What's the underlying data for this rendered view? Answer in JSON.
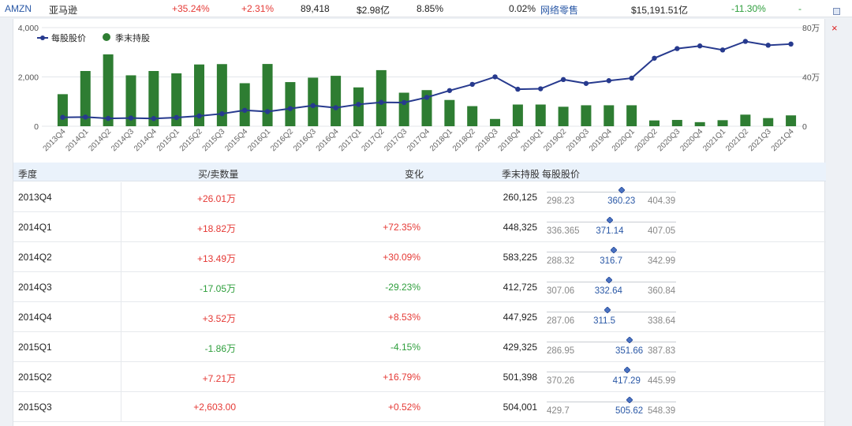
{
  "top_row": {
    "ticker": "AMZN",
    "name": "亚马逊",
    "change1": "+35.24%",
    "change2": "+2.31%",
    "volume": "89,418",
    "amount": "$2.98亿",
    "ratio": "8.85%",
    "ratio2": "0.02%",
    "sector": "网络零售",
    "mkt_cap": "$15,191.51亿",
    "change3": "-11.30%",
    "change3_suffix": "-"
  },
  "colors": {
    "bar": "#2e7d32",
    "line": "#273a8e",
    "pos": "#e53935",
    "neg": "#2e9e3c",
    "header_bg": "#eaf2fb"
  },
  "chart_data": {
    "type": "bar",
    "legend": [
      {
        "name": "每股股价",
        "icon": "line-dot"
      },
      {
        "name": "季末持股",
        "icon": "circle"
      }
    ],
    "categories": [
      "2013Q4",
      "2014Q1",
      "2014Q2",
      "2014Q3",
      "2014Q4",
      "2015Q1",
      "2015Q2",
      "2015Q3",
      "2015Q4",
      "2016Q1",
      "2016Q2",
      "2016Q3",
      "2016Q4",
      "2017Q1",
      "2017Q2",
      "2017Q3",
      "2017Q4",
      "2018Q1",
      "2018Q2",
      "2018Q3",
      "2018Q4",
      "2019Q1",
      "2019Q2",
      "2019Q3",
      "2019Q4",
      "2020Q1",
      "2020Q2",
      "2020Q3",
      "2020Q4",
      "2021Q1",
      "2021Q2",
      "2021Q3",
      "2021Q4"
    ],
    "series": [
      {
        "name": "季末持股",
        "axis": "right",
        "unit": "万",
        "values": [
          26.0,
          44.8,
          58.3,
          41.3,
          44.8,
          42.9,
          50.1,
          50.4,
          34.9,
          50.5,
          35.8,
          39.4,
          40.9,
          31.5,
          45.5,
          27.2,
          29.3,
          21.3,
          16.3,
          5.9,
          17.6,
          17.6,
          15.8,
          17.0,
          17.0,
          17.0,
          4.7,
          5.1,
          3.3,
          4.9,
          9.4,
          6.6,
          8.8
        ]
      },
      {
        "name": "每股股价",
        "axis": "left",
        "values": [
          360,
          371,
          317,
          333,
          312,
          352,
          417,
          506,
          646,
          594,
          715,
          838,
          750,
          886,
          969,
          961,
          1169,
          1447,
          1699,
          2003,
          1501,
          1519,
          1893,
          1735,
          1848,
          1950,
          2759,
          3149,
          3257,
          3094,
          3441,
          3285,
          3334
        ]
      }
    ],
    "y_left": {
      "ticks": [
        "0",
        "2,000",
        "4,000"
      ],
      "ylim": [
        0,
        4000
      ]
    },
    "y_right": {
      "ticks": [
        "0",
        "40万",
        "80万"
      ],
      "ylim": [
        0,
        80
      ]
    }
  },
  "table": {
    "headers": {
      "quarter": "季度",
      "trade": "买/卖数量",
      "change": "变化",
      "holding": "季末持股",
      "price": "每股股价"
    },
    "rows": [
      {
        "quarter": "2013Q4",
        "trade": "+26.01万",
        "trade_sign": "pos",
        "change": "",
        "change_sign": "pos",
        "holding": "260,125",
        "low": "298.23",
        "mid": "360.23",
        "high": "404.39",
        "pos": 0.58
      },
      {
        "quarter": "2014Q1",
        "trade": "+18.82万",
        "trade_sign": "pos",
        "change": "+72.35%",
        "change_sign": "pos",
        "holding": "448,325",
        "low": "336.365",
        "mid": "371.14",
        "high": "407.05",
        "pos": 0.49
      },
      {
        "quarter": "2014Q2",
        "trade": "+13.49万",
        "trade_sign": "pos",
        "change": "+30.09%",
        "change_sign": "pos",
        "holding": "583,225",
        "low": "288.32",
        "mid": "316.7",
        "high": "342.99",
        "pos": 0.52
      },
      {
        "quarter": "2014Q3",
        "trade": "-17.05万",
        "trade_sign": "neg",
        "change": "-29.23%",
        "change_sign": "neg",
        "holding": "412,725",
        "low": "307.06",
        "mid": "332.64",
        "high": "360.84",
        "pos": 0.48
      },
      {
        "quarter": "2014Q4",
        "trade": "+3.52万",
        "trade_sign": "pos",
        "change": "+8.53%",
        "change_sign": "pos",
        "holding": "447,925",
        "low": "287.06",
        "mid": "311.5",
        "high": "338.64",
        "pos": 0.47
      },
      {
        "quarter": "2015Q1",
        "trade": "-1.86万",
        "trade_sign": "neg",
        "change": "-4.15%",
        "change_sign": "neg",
        "holding": "429,325",
        "low": "286.95",
        "mid": "351.66",
        "high": "387.83",
        "pos": 0.64
      },
      {
        "quarter": "2015Q2",
        "trade": "+7.21万",
        "trade_sign": "pos",
        "change": "+16.79%",
        "change_sign": "pos",
        "holding": "501,398",
        "low": "370.26",
        "mid": "417.29",
        "high": "445.99",
        "pos": 0.62
      },
      {
        "quarter": "2015Q3",
        "trade": "+2,603.00",
        "trade_sign": "pos",
        "change": "+0.52%",
        "change_sign": "pos",
        "holding": "504,001",
        "low": "429.7",
        "mid": "505.62",
        "high": "548.39",
        "pos": 0.64
      }
    ]
  }
}
